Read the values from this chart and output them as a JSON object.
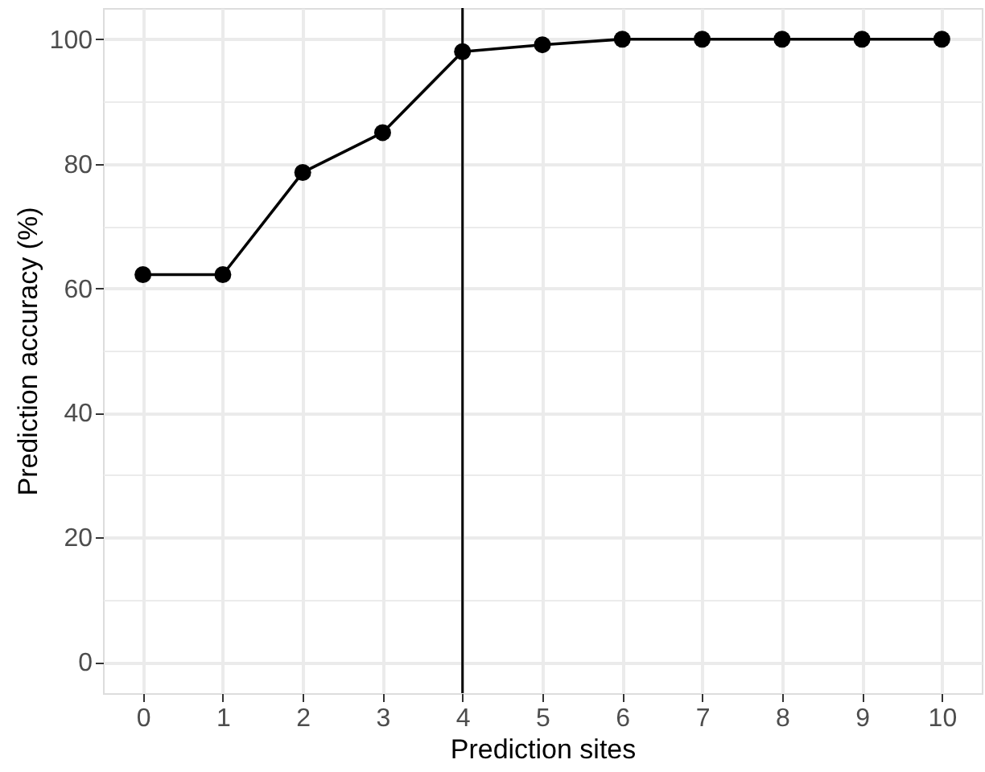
{
  "chart_data": {
    "type": "line",
    "xlabel": "Prediction sites",
    "ylabel": "Prediction accuracy (%)",
    "x": [
      0,
      1,
      2,
      3,
      4,
      5,
      6,
      7,
      8,
      9,
      10
    ],
    "series": [
      {
        "color": "#000000",
        "values": [
          62.2,
          62.2,
          78.6,
          85.0,
          98.0,
          99.1,
          100,
          100,
          100,
          100,
          100
        ]
      }
    ],
    "xlim": [
      -0.5,
      10.5
    ],
    "xticks": [
      0,
      1,
      2,
      3,
      4,
      5,
      6,
      7,
      8,
      9,
      10
    ],
    "ylim": [
      -5,
      105
    ],
    "yticks": [
      0,
      20,
      40,
      60,
      80,
      100
    ],
    "ref_lines": [
      {
        "axis": "x",
        "value": 4,
        "color": "#000000"
      }
    ],
    "grid": true,
    "marker": "circle",
    "line_style": "solid"
  }
}
